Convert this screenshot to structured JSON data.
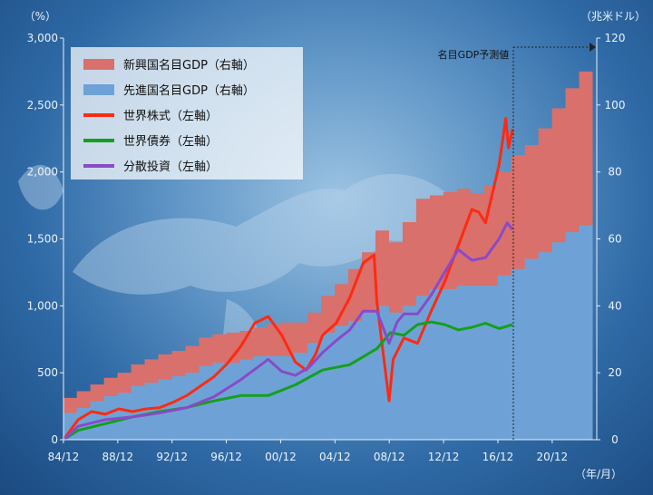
{
  "chart_data": {
    "type": "area",
    "y_unit_left": "（%）",
    "y_unit_right": "（兆米ドル）",
    "x_unit": "（年/月）",
    "annotation": "名目GDP予測値",
    "x_ticks": [
      "84/12",
      "88/12",
      "92/12",
      "96/12",
      "00/12",
      "04/12",
      "08/12",
      "12/12",
      "16/12",
      "20/12"
    ],
    "x_range": [
      1984.92,
      2024.2
    ],
    "ylim_left": [
      0,
      3000
    ],
    "yticks_left": [
      "0",
      "500",
      "1,000",
      "1,500",
      "2,000",
      "2,500",
      "3,000"
    ],
    "ylim_right": [
      0,
      120
    ],
    "yticks_right": [
      "0",
      "20",
      "40",
      "60",
      "80",
      "100",
      "120"
    ],
    "colors": {
      "emerging": "#d9706b",
      "developed": "#6ea2d6",
      "world_equity": "#ff2a12",
      "world_bond": "#13a01c",
      "diversified": "#8a4ac8"
    },
    "legend": [
      {
        "key": "emerging",
        "label": "新興国名目GDP（右軸）",
        "style": "area"
      },
      {
        "key": "developed",
        "label": "先進国名目GDP（右軸）",
        "style": "area"
      },
      {
        "key": "world_equity",
        "label": "世界株式（左軸）",
        "style": "line"
      },
      {
        "key": "world_bond",
        "label": "世界債券（左軸）",
        "style": "line"
      },
      {
        "key": "diversified",
        "label": "分散投資（左軸）",
        "style": "line"
      }
    ],
    "gdp_years": [
      1985,
      1986,
      1987,
      1988,
      1989,
      1990,
      1991,
      1992,
      1993,
      1994,
      1995,
      1996,
      1997,
      1998,
      1999,
      2000,
      2001,
      2002,
      2003,
      2004,
      2005,
      2006,
      2007,
      2008,
      2009,
      2010,
      2011,
      2012,
      2013,
      2014,
      2015,
      2016,
      2017,
      2018,
      2019,
      2020,
      2021,
      2022,
      2023
    ],
    "gdp_total": [
      12.5,
      14.5,
      16.5,
      18.5,
      20,
      22.5,
      24,
      25.5,
      26.5,
      28,
      30.5,
      31.5,
      32,
      32.5,
      33.5,
      34.5,
      35,
      35,
      38,
      43,
      46.5,
      51,
      56,
      62.5,
      59,
      65,
      72,
      73,
      74,
      75,
      73.5,
      76,
      80,
      85,
      88,
      93,
      99,
      105,
      110
    ],
    "gdp_developed": [
      8,
      9.5,
      11.5,
      13,
      14,
      16,
      17,
      18,
      19,
      20,
      22,
      23,
      23,
      24,
      25,
      25,
      25,
      26,
      29,
      32,
      34,
      35.5,
      38,
      40,
      38,
      40,
      43,
      45,
      45,
      46,
      46,
      46,
      49,
      51,
      54,
      56,
      59,
      62,
      64
    ],
    "series": [
      {
        "name": "世界株式",
        "key": "world_equity",
        "x": [
          1984.92,
          1986,
          1987,
          1988,
          1989,
          1990,
          1991,
          1992,
          1993,
          1994,
          1995,
          1996,
          1997,
          1998,
          1999,
          2000,
          2001,
          2002,
          2002.8,
          2003.5,
          2004,
          2005,
          2006,
          2007,
          2007.8,
          2008,
          2008.9,
          2009.2,
          2010,
          2011,
          2012,
          2013,
          2014,
          2015,
          2015.5,
          2016,
          2017,
          2017.5,
          2017.7,
          2018.0
        ],
        "y": [
          0,
          150,
          210,
          190,
          230,
          210,
          230,
          240,
          280,
          330,
          400,
          470,
          570,
          700,
          870,
          920,
          780,
          580,
          520,
          640,
          780,
          870,
          1060,
          1320,
          1380,
          1030,
          290,
          600,
          760,
          720,
          960,
          1180,
          1450,
          1720,
          1700,
          1620,
          2050,
          2400,
          2180,
          2320
        ]
      },
      {
        "name": "世界債券",
        "key": "world_bond",
        "x": [
          1984.92,
          1986,
          1988,
          1990,
          1992,
          1994,
          1996,
          1998,
          2000,
          2002,
          2004,
          2006,
          2008,
          2009,
          2010,
          2011,
          2012,
          2013,
          2014,
          2015,
          2016,
          2017,
          2018.0
        ],
        "y": [
          0,
          70,
          120,
          170,
          210,
          240,
          290,
          330,
          330,
          410,
          520,
          560,
          680,
          800,
          780,
          860,
          880,
          860,
          820,
          840,
          870,
          830,
          860
        ]
      },
      {
        "name": "分散投資",
        "key": "diversified",
        "x": [
          1984.92,
          1986,
          1988,
          1990,
          1992,
          1994,
          1996,
          1998,
          2000,
          2001,
          2002,
          2003,
          2004,
          2005,
          2006,
          2007,
          2008,
          2008.9,
          2009.5,
          2010,
          2011,
          2012,
          2013,
          2014,
          2015,
          2016,
          2017,
          2017.6,
          2018.0
        ],
        "y": [
          0,
          100,
          150,
          170,
          200,
          240,
          320,
          450,
          600,
          510,
          480,
          540,
          650,
          740,
          820,
          960,
          960,
          720,
          880,
          940,
          940,
          1080,
          1250,
          1420,
          1340,
          1360,
          1500,
          1620,
          1570
        ]
      }
    ]
  }
}
